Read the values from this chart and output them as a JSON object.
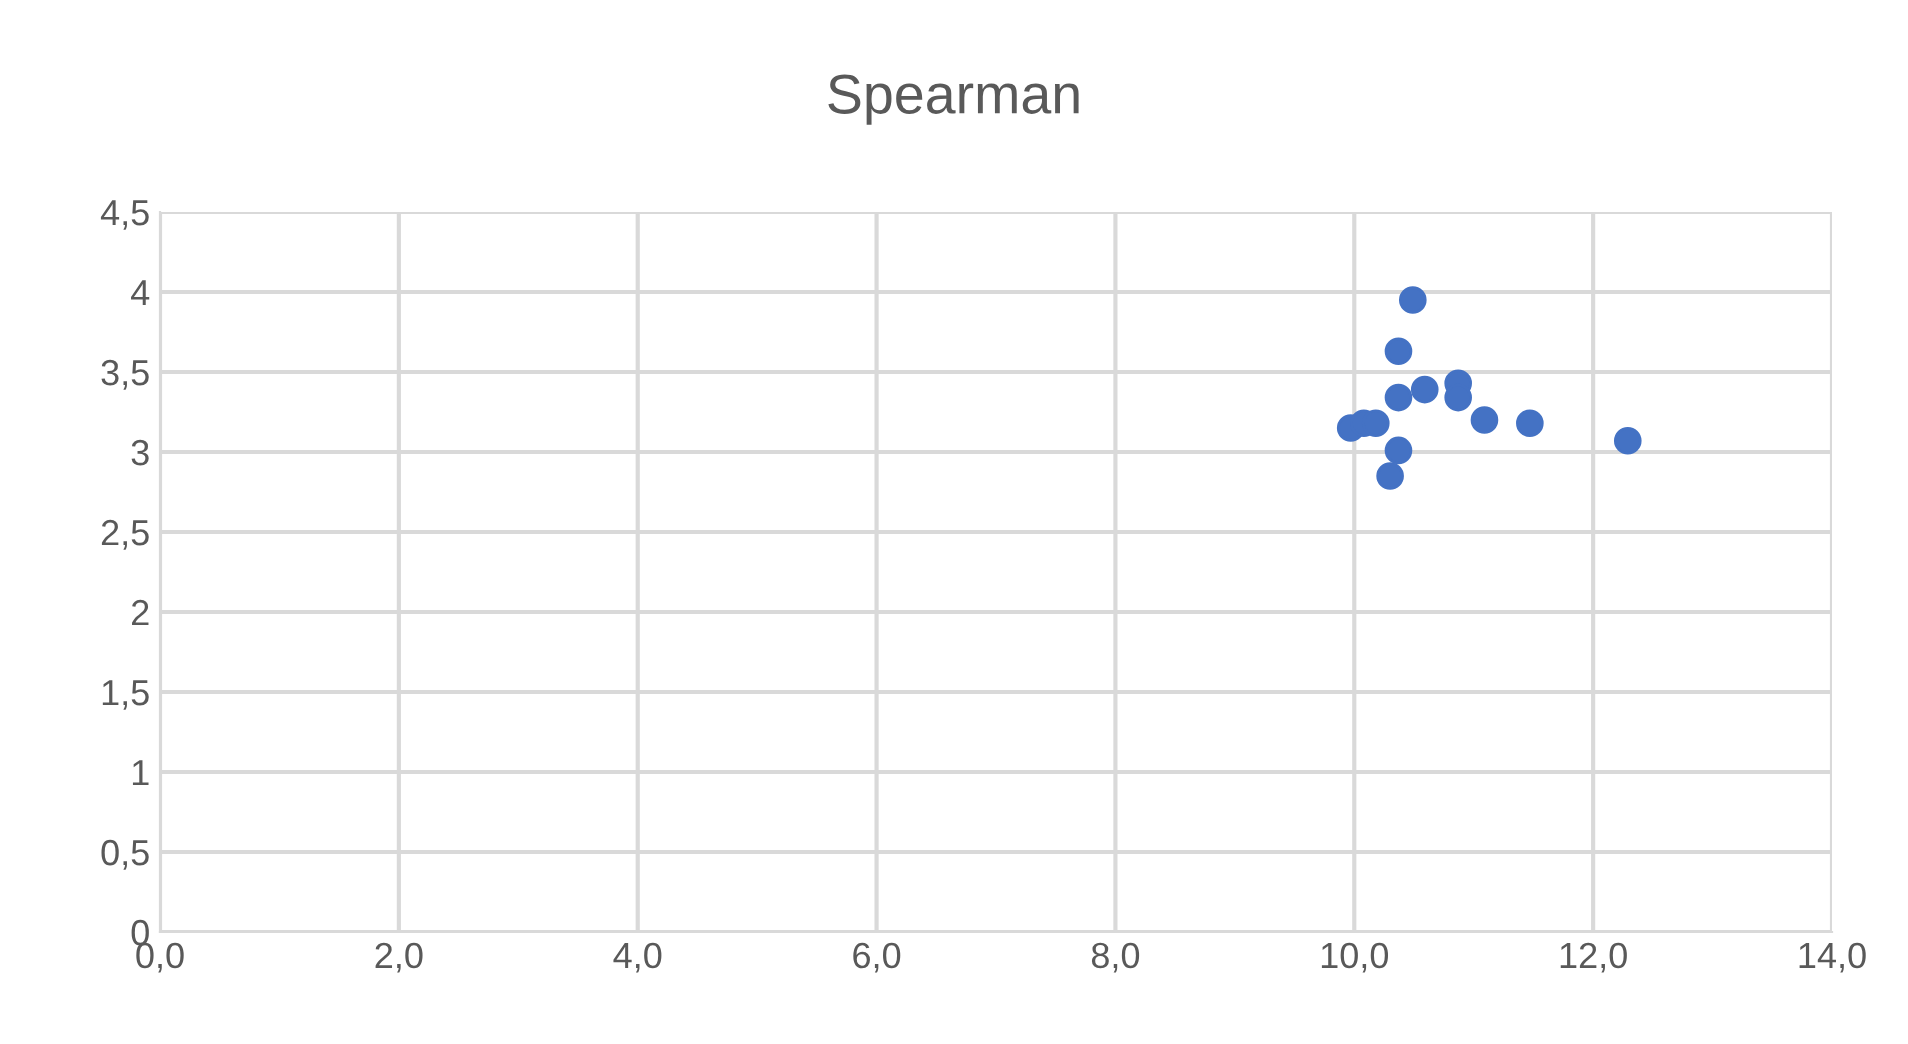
{
  "chart_data": {
    "type": "scatter",
    "title": "Spearman",
    "x": [
      10.49,
      10.37,
      10.37,
      10.59,
      10.87,
      10.87,
      11.09,
      11.47,
      12.29,
      9.97,
      10.08,
      10.18,
      10.37,
      10.3
    ],
    "values": [
      3.95,
      3.63,
      3.34,
      3.39,
      3.43,
      3.34,
      3.2,
      3.18,
      3.07,
      3.15,
      3.18,
      3.18,
      3.01,
      2.85
    ],
    "color": "#4472c4",
    "marker": "circle",
    "grid": true,
    "legend": false,
    "xlim": [
      0,
      14
    ],
    "xticks": [
      {
        "value": 0,
        "label": "0,0"
      },
      {
        "value": 2,
        "label": "2,0"
      },
      {
        "value": 4,
        "label": "4,0"
      },
      {
        "value": 6,
        "label": "6,0"
      },
      {
        "value": 8,
        "label": "8,0"
      },
      {
        "value": 10,
        "label": "10,0"
      },
      {
        "value": 12,
        "label": "12,0"
      },
      {
        "value": 14,
        "label": "14,0"
      }
    ],
    "ylim": [
      0,
      4.5
    ],
    "yticks": [
      0,
      {
        "value": 0.5,
        "label": "0,5"
      },
      1,
      {
        "value": 1.5,
        "label": "1,5"
      },
      2,
      {
        "value": 2.5,
        "label": "2,5"
      },
      3,
      {
        "value": 3.5,
        "label": "3,5"
      },
      4,
      {
        "value": 4.5,
        "label": "4,5"
      }
    ]
  }
}
